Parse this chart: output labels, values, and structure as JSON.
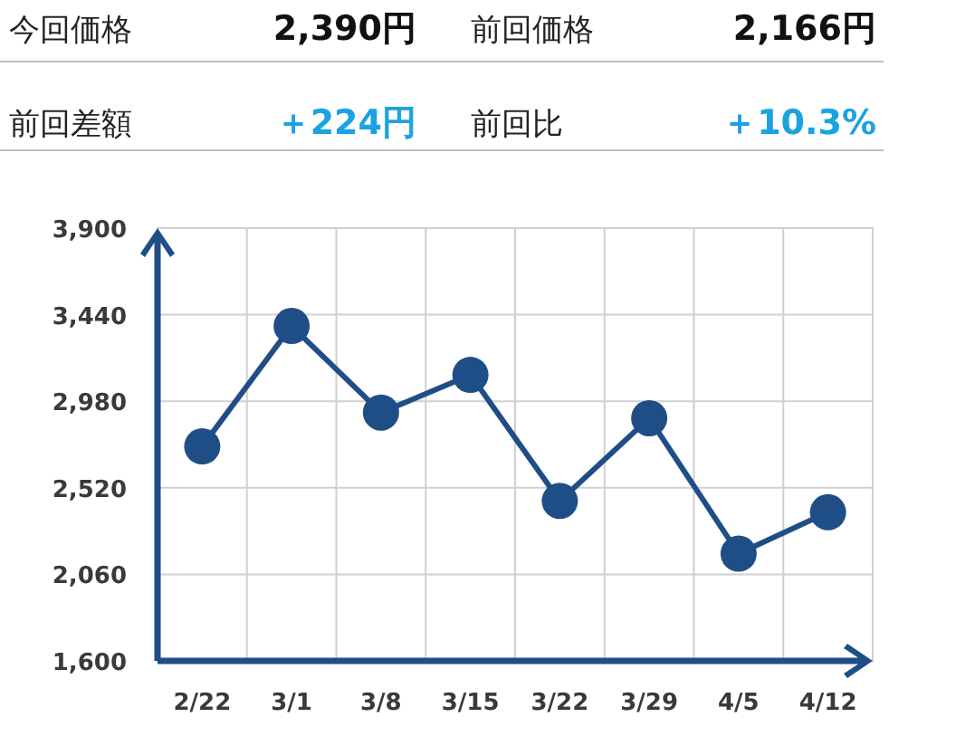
{
  "chart_data": {
    "type": "line",
    "categories": [
      "2/22",
      "3/1",
      "3/8",
      "3/15",
      "3/22",
      "3/29",
      "4/5",
      "4/12"
    ],
    "series": [
      {
        "color": "#1f4e87",
        "values": [
          2740,
          3380,
          2920,
          3120,
          2450,
          2890,
          2170,
          2390
        ]
      }
    ],
    "ylim": [
      1600,
      3900
    ],
    "yticks": [
      {
        "value": 1600,
        "label": "1,600"
      },
      {
        "value": 2060,
        "label": "2,060"
      },
      {
        "value": 2520,
        "label": "2,520"
      },
      {
        "value": 2980,
        "label": "2,980"
      },
      {
        "value": 3440,
        "label": "3,440"
      },
      {
        "value": 3900,
        "label": "3,900"
      }
    ],
    "grid": true,
    "marker": "circle",
    "line_style": "solid",
    "annotations": [
      "今回価格",
      "2,390円",
      "前回価格",
      "2,166円",
      "前回差額",
      "＋224円",
      "前回比",
      "＋10.3%"
    ]
  }
}
